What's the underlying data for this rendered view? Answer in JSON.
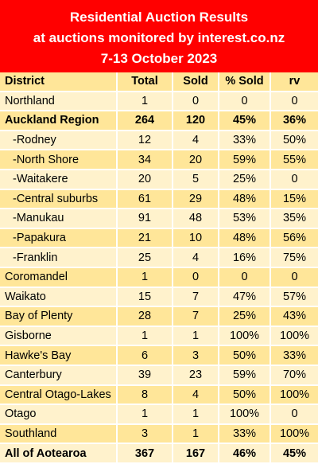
{
  "header": {
    "line1": "Residential Auction Results",
    "line2": "at auctions monitored by interest.co.nz",
    "line3": "7-13 October 2023"
  },
  "table": {
    "columns": [
      "District",
      "Total",
      "Sold",
      "% Sold",
      "rv"
    ],
    "rows": [
      {
        "district": "Northland",
        "total": "1",
        "sold": "0",
        "pct": "0",
        "rv": "0"
      },
      {
        "district": "Auckland Region",
        "total": "264",
        "sold": "120",
        "pct": "45%",
        "rv": "36%"
      },
      {
        "district": "-Rodney",
        "total": "12",
        "sold": "4",
        "pct": "33%",
        "rv": "50%"
      },
      {
        "district": "-North Shore",
        "total": "34",
        "sold": "20",
        "pct": "59%",
        "rv": "55%"
      },
      {
        "district": "-Waitakere",
        "total": "20",
        "sold": "5",
        "pct": "25%",
        "rv": "0"
      },
      {
        "district": "-Central suburbs",
        "total": "61",
        "sold": "29",
        "pct": "48%",
        "rv": "15%"
      },
      {
        "district": "-Manukau",
        "total": "91",
        "sold": "48",
        "pct": "53%",
        "rv": "35%"
      },
      {
        "district": "-Papakura",
        "total": "21",
        "sold": "10",
        "pct": "48%",
        "rv": "56%"
      },
      {
        "district": "-Franklin",
        "total": "25",
        "sold": "4",
        "pct": "16%",
        "rv": "75%"
      },
      {
        "district": "Coromandel",
        "total": "1",
        "sold": "0",
        "pct": "0",
        "rv": "0"
      },
      {
        "district": "Waikato",
        "total": "15",
        "sold": "7",
        "pct": "47%",
        "rv": "57%"
      },
      {
        "district": "Bay of Plenty",
        "total": "28",
        "sold": "7",
        "pct": "25%",
        "rv": "43%"
      },
      {
        "district": "Gisborne",
        "total": "1",
        "sold": "1",
        "pct": "100%",
        "rv": "100%"
      },
      {
        "district": "Hawke's Bay",
        "total": "6",
        "sold": "3",
        "pct": "50%",
        "rv": "33%"
      },
      {
        "district": "Canterbury",
        "total": "39",
        "sold": "23",
        "pct": "59%",
        "rv": "70%"
      },
      {
        "district": "Central Otago-Lakes",
        "total": "8",
        "sold": "4",
        "pct": "50%",
        "rv": "100%"
      },
      {
        "district": "Otago",
        "total": "1",
        "sold": "1",
        "pct": "100%",
        "rv": "0"
      },
      {
        "district": "Southland",
        "total": "3",
        "sold": "1",
        "pct": "33%",
        "rv": "100%"
      },
      {
        "district": "All of Aotearoa",
        "total": "367",
        "sold": "167",
        "pct": "46%",
        "rv": "45%"
      }
    ]
  },
  "colors": {
    "header_bg": "#ff0000",
    "header_text": "#ffffff",
    "row_light": "#fff2cc",
    "row_dark": "#ffe699"
  }
}
